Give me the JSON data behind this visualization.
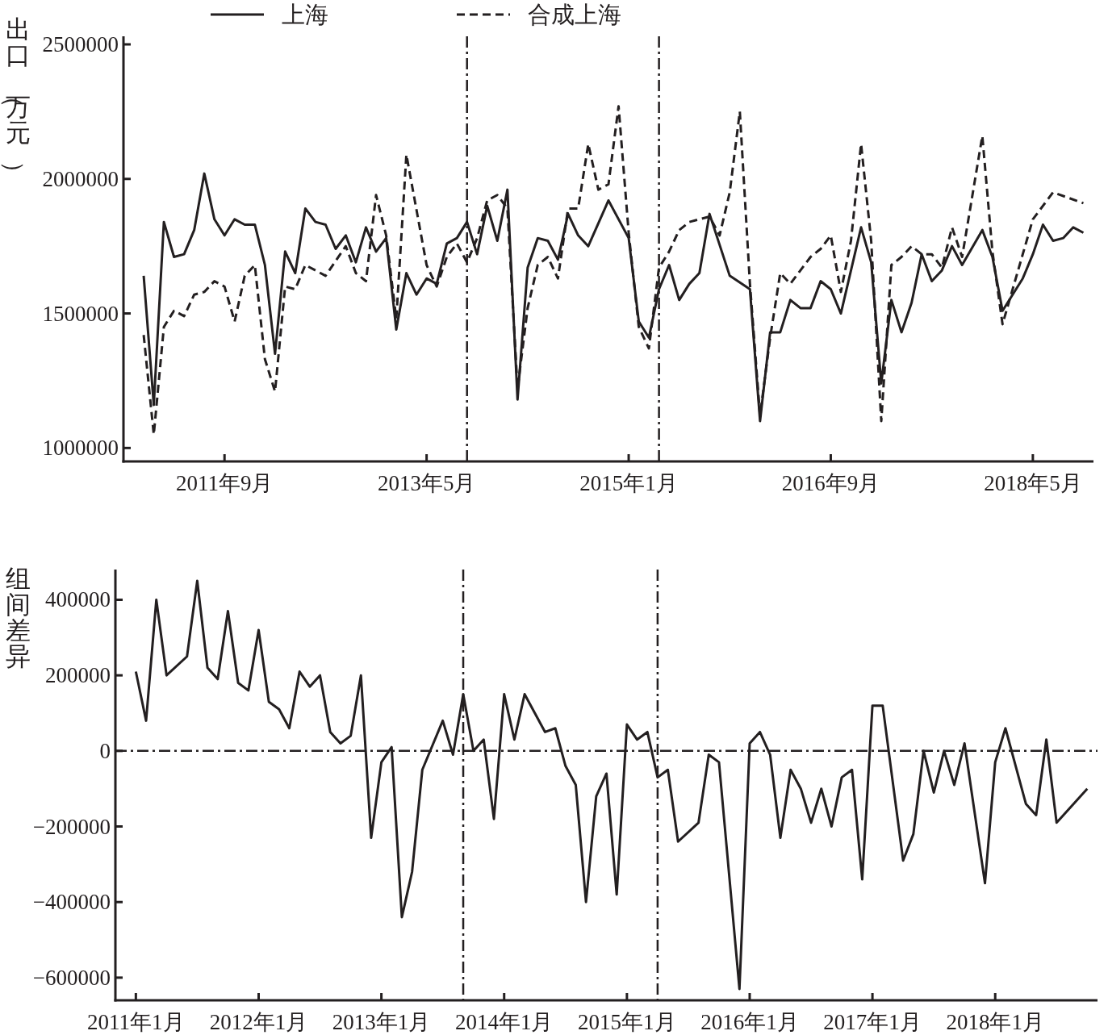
{
  "chart_data": [
    {
      "type": "line",
      "ylabel": "出口（万元）",
      "xlim": [
        "2010-11",
        "2018-11"
      ],
      "ylim": [
        950000,
        2530000
      ],
      "legend": "top",
      "xticks": [
        {
          "value": "2011-09",
          "label": "2011年9月"
        },
        {
          "value": "2013-05",
          "label": "2013年5月"
        },
        {
          "value": "2015-01",
          "label": "2015年1月"
        },
        {
          "value": "2016-09",
          "label": "2016年9月"
        },
        {
          "value": "2018-05",
          "label": "2018年5月"
        }
      ],
      "yticks": [
        1000000,
        1500000,
        2000000,
        2500000
      ],
      "ref_lines": [
        {
          "axis": "x",
          "value": "2013-09"
        },
        {
          "axis": "x",
          "value": "2015-04"
        }
      ],
      "series": [
        {
          "name": "上海",
          "color": "#231f20",
          "line_style": "solid",
          "x": [
            "2011-01",
            "2011-02",
            "2011-03",
            "2011-04",
            "2011-05",
            "2011-06",
            "2011-07",
            "2011-08",
            "2011-09",
            "2011-10",
            "2011-11",
            "2011-12",
            "2012-01",
            "2012-02",
            "2012-03",
            "2012-04",
            "2012-05",
            "2012-06",
            "2012-07",
            "2012-08",
            "2012-09",
            "2012-10",
            "2012-11",
            "2012-12",
            "2013-01",
            "2013-02",
            "2013-03",
            "2013-04",
            "2013-05",
            "2013-06",
            "2013-07",
            "2013-08",
            "2013-09",
            "2013-10",
            "2013-11",
            "2013-12",
            "2014-01",
            "2014-02",
            "2014-03",
            "2014-04",
            "2014-05",
            "2014-06",
            "2014-07",
            "2014-08",
            "2014-09",
            "2014-11",
            "2015-01",
            "2015-02",
            "2015-03",
            "2015-04",
            "2015-05",
            "2015-06",
            "2015-07",
            "2015-08",
            "2015-09",
            "2015-11",
            "2016-01",
            "2016-02",
            "2016-03",
            "2016-04",
            "2016-05",
            "2016-06",
            "2016-07",
            "2016-08",
            "2016-09",
            "2016-10",
            "2016-12",
            "2017-01",
            "2017-02",
            "2017-03",
            "2017-04",
            "2017-05",
            "2017-06",
            "2017-07",
            "2017-08",
            "2017-09",
            "2017-10",
            "2017-12",
            "2018-01",
            "2018-02",
            "2018-03",
            "2018-04",
            "2018-05",
            "2018-06",
            "2018-07",
            "2018-08",
            "2018-09",
            "2018-10"
          ],
          "values": [
            1640000,
            1160000,
            1840000,
            1710000,
            1720000,
            1810000,
            2020000,
            1850000,
            1790000,
            1850000,
            1830000,
            1830000,
            1680000,
            1350000,
            1730000,
            1650000,
            1890000,
            1840000,
            1830000,
            1740000,
            1790000,
            1690000,
            1820000,
            1730000,
            1780000,
            1440000,
            1650000,
            1570000,
            1630000,
            1610000,
            1760000,
            1780000,
            1840000,
            1720000,
            1900000,
            1770000,
            1960000,
            1180000,
            1670000,
            1780000,
            1770000,
            1700000,
            1870000,
            1790000,
            1750000,
            1920000,
            1780000,
            1470000,
            1410000,
            1590000,
            1680000,
            1550000,
            1610000,
            1650000,
            1870000,
            1640000,
            1590000,
            1100000,
            1430000,
            1430000,
            1550000,
            1520000,
            1520000,
            1620000,
            1590000,
            1500000,
            1820000,
            1690000,
            1240000,
            1550000,
            1430000,
            1540000,
            1720000,
            1620000,
            1660000,
            1750000,
            1680000,
            1810000,
            1710000,
            1510000,
            1570000,
            1630000,
            1720000,
            1830000,
            1770000,
            1780000,
            1820000,
            1800000
          ]
        },
        {
          "name": "合成上海",
          "color": "#231f20",
          "line_style": "dashed",
          "x": [
            "2011-01",
            "2011-02",
            "2011-03",
            "2011-04",
            "2011-05",
            "2011-06",
            "2011-07",
            "2011-08",
            "2011-09",
            "2011-10",
            "2011-11",
            "2011-12",
            "2012-01",
            "2012-02",
            "2012-03",
            "2012-04",
            "2012-05",
            "2012-07",
            "2012-09",
            "2012-10",
            "2012-11",
            "2012-12",
            "2013-01",
            "2013-02",
            "2013-03",
            "2013-05",
            "2013-06",
            "2013-07",
            "2013-08",
            "2013-09",
            "2013-10",
            "2013-11",
            "2013-12",
            "2014-01",
            "2014-02",
            "2014-03",
            "2014-04",
            "2014-05",
            "2014-06",
            "2014-07",
            "2014-08",
            "2014-09",
            "2014-10",
            "2014-11",
            "2014-12",
            "2015-01",
            "2015-02",
            "2015-03",
            "2015-04",
            "2015-05",
            "2015-06",
            "2015-07",
            "2015-09",
            "2015-10",
            "2015-11",
            "2015-12",
            "2016-01",
            "2016-02",
            "2016-03",
            "2016-04",
            "2016-05",
            "2016-07",
            "2016-08",
            "2016-09",
            "2016-10",
            "2016-11",
            "2016-12",
            "2017-01",
            "2017-02",
            "2017-03",
            "2017-04",
            "2017-05",
            "2017-06",
            "2017-07",
            "2017-08",
            "2017-09",
            "2017-10",
            "2017-12",
            "2018-01",
            "2018-02",
            "2018-05",
            "2018-07",
            "2018-10"
          ],
          "values": [
            1420000,
            1050000,
            1450000,
            1510000,
            1490000,
            1570000,
            1580000,
            1620000,
            1600000,
            1470000,
            1640000,
            1680000,
            1330000,
            1210000,
            1600000,
            1590000,
            1680000,
            1640000,
            1750000,
            1650000,
            1620000,
            1940000,
            1790000,
            1480000,
            2090000,
            1680000,
            1600000,
            1710000,
            1760000,
            1690000,
            1780000,
            1920000,
            1940000,
            1890000,
            1220000,
            1520000,
            1680000,
            1710000,
            1630000,
            1890000,
            1890000,
            2130000,
            1960000,
            1980000,
            2270000,
            1800000,
            1450000,
            1370000,
            1670000,
            1730000,
            1810000,
            1840000,
            1860000,
            1790000,
            1950000,
            2250000,
            1610000,
            1120000,
            1410000,
            1650000,
            1610000,
            1710000,
            1740000,
            1790000,
            1580000,
            1770000,
            2130000,
            1770000,
            1100000,
            1680000,
            1710000,
            1750000,
            1720000,
            1720000,
            1670000,
            1820000,
            1710000,
            2160000,
            1730000,
            1460000,
            1850000,
            1950000,
            1910000
          ]
        }
      ]
    },
    {
      "type": "line",
      "ylabel": "组间差异",
      "xlim": [
        "2010-11",
        "2018-11"
      ],
      "ylim": [
        -660000,
        480000
      ],
      "xticks": [
        {
          "value": "2011-01",
          "label": "2011年1月"
        },
        {
          "value": "2012-01",
          "label": "2012年1月"
        },
        {
          "value": "2013-01",
          "label": "2013年1月"
        },
        {
          "value": "2014-01",
          "label": "2014年1月"
        },
        {
          "value": "2015-01",
          "label": "2015年1月"
        },
        {
          "value": "2016-01",
          "label": "2016年1月"
        },
        {
          "value": "2017-01",
          "label": "2017年1月"
        },
        {
          "value": "2018-01",
          "label": "2018年1月"
        }
      ],
      "yticks": [
        -600000,
        -400000,
        -200000,
        0,
        200000,
        400000
      ],
      "ref_lines": [
        {
          "axis": "x",
          "value": "2013-09"
        },
        {
          "axis": "x",
          "value": "2015-04"
        },
        {
          "axis": "y",
          "value": 0
        }
      ],
      "series": [
        {
          "color": "#231f20",
          "line_style": "solid",
          "x": [
            "2011-01",
            "2011-02",
            "2011-03",
            "2011-04",
            "2011-06",
            "2011-07",
            "2011-08",
            "2011-09",
            "2011-10",
            "2011-11",
            "2011-12",
            "2012-01",
            "2012-02",
            "2012-03",
            "2012-04",
            "2012-05",
            "2012-06",
            "2012-07",
            "2012-08",
            "2012-09",
            "2012-10",
            "2012-11",
            "2012-12",
            "2013-01",
            "2013-02",
            "2013-03",
            "2013-04",
            "2013-05",
            "2013-07",
            "2013-08",
            "2013-09",
            "2013-10",
            "2013-11",
            "2013-12",
            "2014-01",
            "2014-02",
            "2014-03",
            "2014-05",
            "2014-06",
            "2014-07",
            "2014-08",
            "2014-09",
            "2014-10",
            "2014-11",
            "2014-12",
            "2015-01",
            "2015-02",
            "2015-03",
            "2015-04",
            "2015-05",
            "2015-06",
            "2015-08",
            "2015-09",
            "2015-10",
            "2015-12",
            "2016-01",
            "2016-02",
            "2016-03",
            "2016-04",
            "2016-05",
            "2016-06",
            "2016-07",
            "2016-08",
            "2016-09",
            "2016-10",
            "2016-11",
            "2016-12",
            "2017-01",
            "2017-02",
            "2017-04",
            "2017-05",
            "2017-06",
            "2017-07",
            "2017-08",
            "2017-09",
            "2017-10",
            "2017-12",
            "2018-01",
            "2018-02",
            "2018-04",
            "2018-05",
            "2018-06",
            "2018-07",
            "2018-09",
            "2018-10"
          ],
          "values": [
            210000,
            80000,
            400000,
            200000,
            250000,
            450000,
            220000,
            190000,
            370000,
            180000,
            160000,
            320000,
            130000,
            110000,
            60000,
            210000,
            170000,
            200000,
            50000,
            20000,
            40000,
            200000,
            -230000,
            -30000,
            10000,
            -440000,
            -320000,
            -50000,
            80000,
            -10000,
            150000,
            0,
            30000,
            -180000,
            150000,
            30000,
            150000,
            50000,
            60000,
            -40000,
            -90000,
            -400000,
            -120000,
            -60000,
            -380000,
            70000,
            30000,
            50000,
            -70000,
            -50000,
            -240000,
            -190000,
            -10000,
            -30000,
            -630000,
            20000,
            50000,
            -10000,
            -230000,
            -50000,
            -100000,
            -190000,
            -100000,
            -200000,
            -70000,
            -50000,
            -340000,
            120000,
            120000,
            -290000,
            -220000,
            0,
            -110000,
            0,
            -90000,
            20000,
            -350000,
            -30000,
            60000,
            -140000,
            -170000,
            30000,
            -190000,
            -130000,
            -100000
          ]
        }
      ]
    }
  ]
}
